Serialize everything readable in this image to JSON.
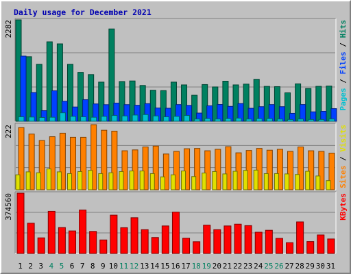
{
  "chart_data": {
    "type": "bar",
    "title": "Daily usage for December 2021",
    "x": [
      "1",
      "2",
      "3",
      "4",
      "5",
      "6",
      "7",
      "8",
      "9",
      "10",
      "11",
      "12",
      "13",
      "14",
      "15",
      "16",
      "17",
      "18",
      "19",
      "20",
      "21",
      "22",
      "23",
      "24",
      "25",
      "26",
      "27",
      "28",
      "29",
      "30",
      "31"
    ],
    "weekend_days": [
      "4",
      "5",
      "11",
      "12",
      "18",
      "19",
      "25",
      "26"
    ],
    "panels": [
      {
        "name": "hits-files-pages",
        "ymax_label": "2282",
        "ylim": [
          0,
          2282
        ],
        "side_label": [
          "Pages",
          "Files",
          "Hits"
        ],
        "side_label_colors": [
          "#00c0d0",
          "#0040ff",
          "#008060"
        ],
        "series": [
          {
            "name": "Hits",
            "color": "#008060",
            "values": [
              2282,
              1452,
              1282,
              1788,
              1742,
              1282,
              1100,
              1051,
              881,
              2078,
              894,
              907,
              805,
              698,
              690,
              881,
              818,
              585,
              826,
              772,
              902,
              818,
              836,
              944,
              785,
              779,
              640,
              842,
              738,
              786,
              793
            ]
          },
          {
            "name": "Files",
            "color": "#0040ff",
            "values": [
              1466,
              646,
              238,
              685,
              450,
              321,
              485,
              390,
              373,
              409,
              374,
              360,
              396,
              298,
              293,
              375,
              357,
              184,
              348,
              377,
              335,
              399,
              292,
              328,
              375,
              328,
              178,
              376,
              212,
              223,
              284
            ]
          },
          {
            "name": "Pages",
            "color": "#00c0d0",
            "values": [
              100,
              95,
              85,
              90,
              190,
              110,
              100,
              90,
              110,
              130,
              120,
              140,
              150,
              120,
              100,
              110,
              130,
              50,
              60,
              50,
              60,
              70,
              50,
              60,
              60,
              50,
              40,
              50,
              40,
              40,
              50
            ]
          }
        ]
      },
      {
        "name": "visits-sites",
        "ymax_label": "222",
        "ylim": [
          0,
          222
        ],
        "side_label": [
          "Sites",
          "Visits"
        ],
        "side_label_colors": [
          "#ff8000",
          "#e0e000"
        ],
        "series": [
          {
            "name": "Sites",
            "color": "#ff8000",
            "values": [
              212,
              190,
              168,
              181,
              193,
              179,
              179,
              222,
              203,
              200,
              133,
              136,
              146,
              149,
              122,
              131,
              140,
              141,
              133,
              138,
              147,
              126,
              134,
              141,
              135,
              138,
              131,
              146,
              133,
              131,
              125
            ]
          },
          {
            "name": "Visits",
            "color": "#e0e000",
            "values": [
              51,
              61,
              58,
              71,
              61,
              55,
              62,
              66,
              55,
              58,
              62,
              64,
              64,
              55,
              44,
              51,
              64,
              45,
              57,
              62,
              54,
              63,
              66,
              67,
              55,
              55,
              54,
              52,
              63,
              47,
              31
            ]
          }
        ]
      },
      {
        "name": "kbytes",
        "ymax_label": "374560",
        "ylim": [
          0,
          374560
        ],
        "side_label": [
          "KBytes"
        ],
        "side_label_colors": [
          "#ff0000"
        ],
        "series": [
          {
            "name": "KBytes",
            "color": "#ff0000",
            "values": [
              374560,
              188000,
              97000,
              262000,
              161000,
              140000,
              270000,
              137000,
              84000,
              238000,
              160000,
              222000,
              148000,
              99000,
              171000,
              257000,
              95000,
              73000,
              176000,
              148000,
              171000,
              182000,
              173000,
              132000,
              144000,
              94000,
              67000,
              196000,
              74000,
              115000,
              90000
            ]
          }
        ]
      }
    ]
  }
}
